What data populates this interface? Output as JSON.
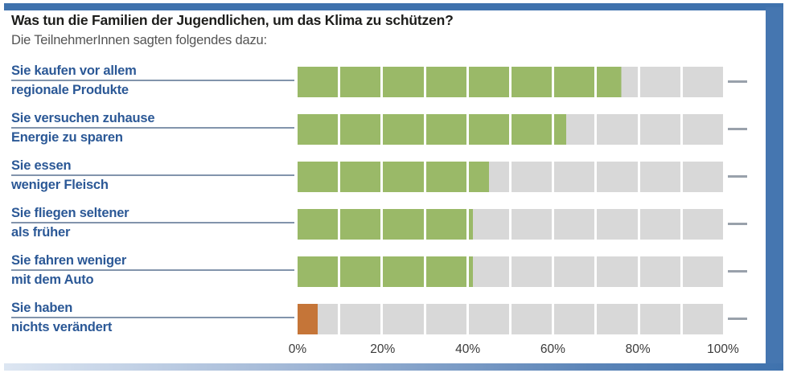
{
  "header": {
    "title": "Was tun die Familien der Jugendlichen, um das Klima zu schützen?",
    "subtitle": "Die TeilnehmerInnen sagten folgendes dazu:"
  },
  "chart_data": {
    "type": "bar",
    "orientation": "horizontal",
    "unit": "percent",
    "segments_per_bar": 10,
    "xlim": [
      0,
      100
    ],
    "x_ticks": [
      "0%",
      "20%",
      "40%",
      "60%",
      "80%",
      "100%"
    ],
    "grid": false,
    "legend": false,
    "rows": [
      {
        "label_line1": "Sie kaufen vor allem",
        "label_line2": "regionale Produkte",
        "value": 76,
        "color": "green"
      },
      {
        "label_line1": "Sie versuchen zuhause",
        "label_line2": "Energie zu sparen",
        "value": 63,
        "color": "green"
      },
      {
        "label_line1": "Sie essen",
        "label_line2": "weniger Fleisch",
        "value": 45,
        "color": "green"
      },
      {
        "label_line1": "Sie fliegen seltener",
        "label_line2": "als früher",
        "value": 41,
        "color": "green"
      },
      {
        "label_line1": "Sie fahren weniger",
        "label_line2": "mit dem Auto",
        "value": 41,
        "color": "green"
      },
      {
        "label_line1": "Sie haben",
        "label_line2": "nichts verändert",
        "value": 5,
        "color": "orange"
      }
    ],
    "colors": {
      "green": "#9ab968",
      "orange": "#c57538",
      "empty": "#d8d8d8",
      "accent_border": "#3f72ad",
      "label_text": "#2b5896",
      "label_rule": "#8294ac",
      "end_dash": "#99a1ab"
    }
  }
}
